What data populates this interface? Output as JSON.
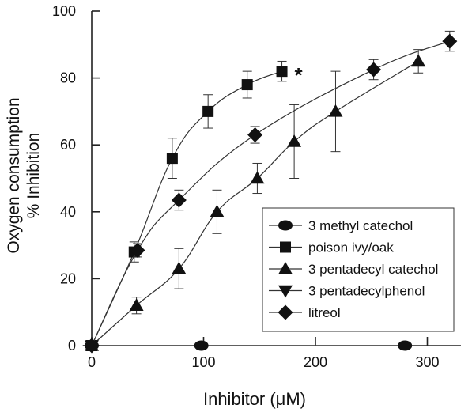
{
  "chart_data": {
    "type": "scatter",
    "title": "",
    "xlabel": "Inhibitor (μM)",
    "ylabel_lines": [
      "Oxygen consumption",
      "% Inhibition"
    ],
    "xlim": [
      -8,
      330
    ],
    "ylim": [
      0,
      100
    ],
    "xticks": [
      0,
      100,
      200,
      300
    ],
    "yticks": [
      0,
      20,
      40,
      60,
      80,
      100
    ],
    "grid": false,
    "legend_position": "bottom-right",
    "annotation": "*",
    "series": [
      {
        "name": "3 methyl catechol",
        "marker": "circle",
        "points": [
          {
            "x": 0,
            "y": 0
          },
          {
            "x": 98,
            "y": 0
          },
          {
            "x": 280,
            "y": 0
          }
        ]
      },
      {
        "name": "poison ivy/oak",
        "marker": "square",
        "points": [
          {
            "x": 0,
            "y": 0,
            "err": 0
          },
          {
            "x": 38,
            "y": 28,
            "err": 3
          },
          {
            "x": 72,
            "y": 56,
            "err": 6
          },
          {
            "x": 104,
            "y": 70,
            "err": 5
          },
          {
            "x": 139,
            "y": 78,
            "err": 4
          },
          {
            "x": 170,
            "y": 82,
            "err": 3
          }
        ]
      },
      {
        "name": "3 pentadecyl catechol",
        "marker": "triangle-up",
        "points": [
          {
            "x": 0,
            "y": 0,
            "err": 0
          },
          {
            "x": 40,
            "y": 12,
            "err": 2.5
          },
          {
            "x": 78,
            "y": 23,
            "err": 6
          },
          {
            "x": 112,
            "y": 40,
            "err": 6.5
          },
          {
            "x": 148,
            "y": 50,
            "err": 4.5
          },
          {
            "x": 181,
            "y": 61,
            "err": 11
          },
          {
            "x": 218,
            "y": 70,
            "err": 12
          },
          {
            "x": 292,
            "y": 85,
            "err": 3.5
          }
        ]
      },
      {
        "name": "3 pentadecylphenol",
        "marker": "triangle-down",
        "points": [
          {
            "x": 0,
            "y": 0
          }
        ]
      },
      {
        "name": "litreol",
        "marker": "diamond",
        "points": [
          {
            "x": 0,
            "y": 0,
            "err": 0
          },
          {
            "x": 41,
            "y": 28.5,
            "err": 2
          },
          {
            "x": 78,
            "y": 43.5,
            "err": 3
          },
          {
            "x": 146,
            "y": 63,
            "err": 2.5
          },
          {
            "x": 252,
            "y": 82.5,
            "err": 3
          },
          {
            "x": 320,
            "y": 91,
            "err": 3
          }
        ]
      }
    ]
  }
}
